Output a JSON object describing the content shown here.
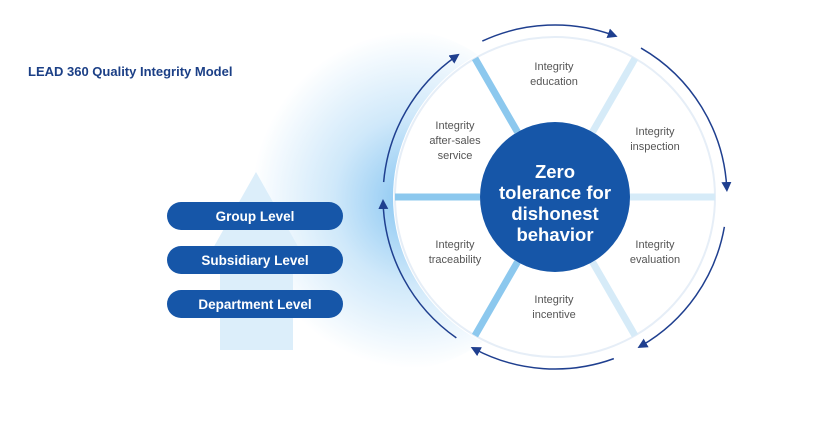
{
  "title": "LEAD 360 Quality Integrity Model",
  "levels": [
    "Group Level",
    "Subsidiary Level",
    "Department Level"
  ],
  "center": [
    "Zero",
    "tolerance for",
    "dishonest",
    "behavior"
  ],
  "segments": [
    {
      "lines": [
        "Integrity",
        "education"
      ]
    },
    {
      "lines": [
        "Integrity",
        "inspection"
      ]
    },
    {
      "lines": [
        "Integrity",
        "evaluation"
      ]
    },
    {
      "lines": [
        "Integrity",
        "incentive"
      ]
    },
    {
      "lines": [
        "Integrity",
        "traceability"
      ]
    },
    {
      "lines": [
        "Integrity",
        "after-sales",
        "service"
      ]
    }
  ],
  "colors": {
    "primary": "#1656a8",
    "arrow": "#1f3f8f",
    "divider": "#8cc8ee",
    "upArrow": "#dceefa"
  }
}
